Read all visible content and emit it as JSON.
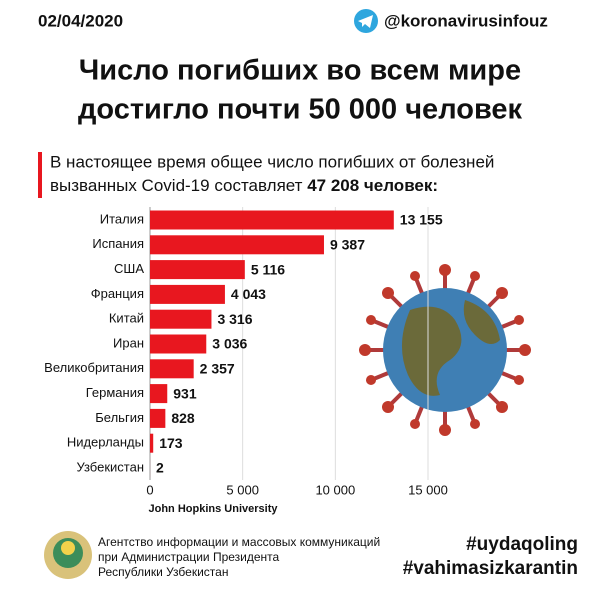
{
  "header": {
    "date": "02/04/2020",
    "handle": "@koronavirusinfouz"
  },
  "chart_data": {
    "type": "bar",
    "title": [
      "Число погибших во всем мире",
      "достигло почти 50 000 человек"
    ],
    "subtitle": [
      "В настоящее время общее число погибших от болезней",
      "вызванных Covid-19 составляет"
    ],
    "subtitle_emphasis": "47 208 человек:",
    "categories": [
      "Италия",
      "Испания",
      "США",
      "Франция",
      "Китай",
      "Иран",
      "Великобритания",
      "Германия",
      "Бельгия",
      "Нидерланды",
      "Узбекистан"
    ],
    "values": [
      13155,
      9387,
      5116,
      4043,
      3316,
      3036,
      2357,
      931,
      828,
      173,
      2
    ],
    "value_labels": [
      "13 155",
      "9 387",
      "5 116",
      "4 043",
      "3 316",
      "3 036",
      "2 357",
      "931",
      "828",
      "173",
      "2"
    ],
    "color": "#e8171f",
    "xlim": [
      0,
      15000
    ],
    "xticks": [
      0,
      {
        "value": 5000,
        "label": "5 000"
      },
      {
        "value": 10000,
        "label": "10 000"
      },
      {
        "value": 15000,
        "label": "15 000"
      }
    ],
    "grid": true,
    "source": "John Hopkins University"
  },
  "footer": {
    "agency": [
      "Агентство информации и массовых коммуникаций",
      "при Администрации Президента",
      "Республики Узбекистан"
    ],
    "hashtags": [
      "#uydaqoling",
      "#vahimasizkarantin"
    ]
  }
}
